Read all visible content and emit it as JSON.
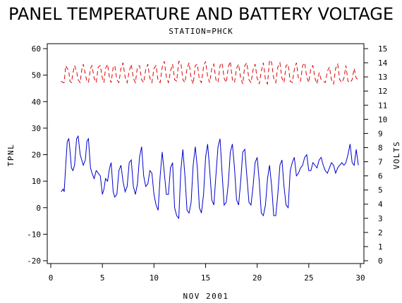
{
  "chart_data": {
    "type": "line",
    "title": "PANEL TEMPERATURE AND BATTERY VOLTAGE",
    "subtitle": "STATION=PHCK",
    "xlabel": "NOV 2001",
    "ylabel_left": "TPNL",
    "ylabel_right": "VOLTS",
    "xlim": [
      0,
      30
    ],
    "ylim_left": [
      -20,
      60
    ],
    "ylim_right": [
      0,
      15
    ],
    "x_ticks": [
      0,
      5,
      10,
      15,
      20,
      25,
      30
    ],
    "y_ticks_left": [
      -20,
      -10,
      0,
      10,
      20,
      30,
      40,
      50,
      60
    ],
    "y_ticks_right": [
      0,
      1,
      2,
      3,
      4,
      5,
      6,
      7,
      8,
      9,
      10,
      11,
      12,
      13,
      14,
      15
    ],
    "grid": false,
    "series": [
      {
        "axis": "left",
        "color": "#0000cc",
        "style": "solid",
        "x": [
          1.0,
          1.2,
          1.3,
          1.45,
          1.6,
          1.75,
          1.85,
          2.0,
          2.15,
          2.3,
          2.5,
          2.65,
          2.85,
          3.0,
          3.15,
          3.35,
          3.5,
          3.65,
          3.85,
          4.0,
          4.2,
          4.4,
          4.6,
          4.8,
          5.0,
          5.15,
          5.3,
          5.5,
          5.7,
          5.85,
          6.05,
          6.2,
          6.4,
          6.6,
          6.8,
          7.0,
          7.2,
          7.4,
          7.6,
          7.8,
          8.0,
          8.2,
          8.4,
          8.6,
          8.8,
          9.0,
          9.2,
          9.4,
          9.6,
          9.8,
          10.0,
          10.2,
          10.4,
          10.6,
          10.8,
          11.0,
          11.2,
          11.4,
          11.6,
          11.8,
          12.0,
          12.2,
          12.4,
          12.6,
          12.8,
          13.0,
          13.2,
          13.4,
          13.6,
          13.8,
          14.0,
          14.2,
          14.4,
          14.6,
          14.8,
          15.0,
          15.2,
          15.4,
          15.6,
          15.8,
          16.0,
          16.2,
          16.4,
          16.6,
          16.8,
          17.0,
          17.2,
          17.4,
          17.6,
          17.8,
          18.0,
          18.2,
          18.4,
          18.6,
          18.8,
          19.0,
          19.2,
          19.4,
          19.6,
          19.8,
          20.0,
          20.2,
          20.4,
          20.6,
          20.8,
          21.0,
          21.2,
          21.4,
          21.6,
          21.8,
          22.0,
          22.2,
          22.4,
          22.6,
          22.8,
          23.0,
          23.2,
          23.4,
          23.6,
          23.8,
          24.0,
          24.2,
          24.4,
          24.6,
          24.8,
          25.0,
          25.2,
          25.4,
          25.6,
          25.8,
          26.0,
          26.2,
          26.4,
          26.6,
          26.8,
          27.0,
          27.2,
          27.4,
          27.6,
          27.8,
          28.0,
          28.2,
          28.4,
          28.6,
          28.8,
          29.0,
          29.2,
          29.4,
          29.6,
          29.8
        ],
        "values": [
          6,
          7,
          6,
          16,
          25,
          26,
          22,
          15,
          14,
          16,
          26,
          27,
          20,
          18,
          16,
          18,
          25,
          26,
          15,
          13,
          11,
          14,
          13,
          12,
          5,
          7,
          11,
          10,
          15,
          17,
          6,
          4,
          5,
          14,
          16,
          10,
          6,
          8,
          17,
          18,
          8,
          5,
          9,
          19,
          23,
          12,
          8,
          9,
          14,
          13,
          5,
          1,
          -1,
          12,
          21,
          13,
          5,
          5,
          15,
          17,
          0,
          -3,
          -4,
          14,
          22,
          12,
          -1,
          -2,
          2,
          16,
          23,
          15,
          0,
          -2,
          5,
          19,
          24,
          14,
          3,
          1,
          12,
          23,
          26,
          13,
          1,
          2,
          9,
          21,
          24,
          15,
          3,
          1,
          10,
          21,
          22,
          12,
          2,
          1,
          8,
          17,
          19,
          10,
          -2,
          -3,
          1,
          11,
          16,
          8,
          -3,
          -3,
          5,
          16,
          18,
          8,
          1,
          0,
          14,
          17,
          19,
          12,
          13,
          15,
          16,
          19,
          20,
          14,
          14,
          17,
          16,
          15,
          18,
          19,
          16,
          14,
          13,
          15,
          17,
          16,
          13,
          15,
          16,
          17,
          16,
          17,
          20,
          24,
          17,
          16,
          22,
          16
        ]
      },
      {
        "axis": "right",
        "color": "#dd0000",
        "style": "dashed",
        "x": [
          1.0,
          1.2,
          1.3,
          1.45,
          1.6,
          1.75,
          1.85,
          2.0,
          2.15,
          2.3,
          2.5,
          2.65,
          2.85,
          3.0,
          3.15,
          3.35,
          3.5,
          3.65,
          3.85,
          4.0,
          4.2,
          4.4,
          4.6,
          4.8,
          5.0,
          5.15,
          5.3,
          5.5,
          5.7,
          5.85,
          6.05,
          6.2,
          6.4,
          6.6,
          6.8,
          7.0,
          7.2,
          7.4,
          7.6,
          7.8,
          8.0,
          8.2,
          8.4,
          8.6,
          8.8,
          9.0,
          9.2,
          9.4,
          9.6,
          9.8,
          10.0,
          10.2,
          10.4,
          10.6,
          10.8,
          11.0,
          11.2,
          11.4,
          11.6,
          11.8,
          12.0,
          12.2,
          12.4,
          12.6,
          12.8,
          13.0,
          13.2,
          13.4,
          13.6,
          13.8,
          14.0,
          14.2,
          14.4,
          14.6,
          14.8,
          15.0,
          15.2,
          15.4,
          15.6,
          15.8,
          16.0,
          16.2,
          16.4,
          16.6,
          16.8,
          17.0,
          17.2,
          17.4,
          17.6,
          17.8,
          18.0,
          18.2,
          18.4,
          18.6,
          18.8,
          19.0,
          19.2,
          19.4,
          19.6,
          19.8,
          20.0,
          20.2,
          20.4,
          20.6,
          20.8,
          21.0,
          21.2,
          21.4,
          21.6,
          21.8,
          22.0,
          22.2,
          22.4,
          22.6,
          22.8,
          23.0,
          23.2,
          23.4,
          23.6,
          23.8,
          24.0,
          24.2,
          24.4,
          24.6,
          24.8,
          25.0,
          25.2,
          25.4,
          25.6,
          25.8,
          26.0,
          26.2,
          26.4,
          26.6,
          26.8,
          27.0,
          27.2,
          27.4,
          27.6,
          27.8,
          28.0,
          28.2,
          28.4,
          28.6,
          28.8,
          29.0,
          29.2,
          29.4,
          29.6,
          29.8
        ],
        "values": [
          12.7,
          12.6,
          12.6,
          13.8,
          13.6,
          13.4,
          12.7,
          12.6,
          13.3,
          13.8,
          13.4,
          12.8,
          12.6,
          13.5,
          13.9,
          13.2,
          12.7,
          12.6,
          13.6,
          13.8,
          12.9,
          12.6,
          13.7,
          13.8,
          12.9,
          12.6,
          13.6,
          13.9,
          12.9,
          12.6,
          13.7,
          13.8,
          12.8,
          12.6,
          13.6,
          14.0,
          13.0,
          12.6,
          13.4,
          13.9,
          12.9,
          12.6,
          13.7,
          13.8,
          12.8,
          12.6,
          13.5,
          13.9,
          12.9,
          12.6,
          13.6,
          13.8,
          12.7,
          12.6,
          13.7,
          14.1,
          13.0,
          12.6,
          13.4,
          13.9,
          12.8,
          12.7,
          14.1,
          14.0,
          12.8,
          12.6,
          13.6,
          14.0,
          12.9,
          12.5,
          13.8,
          13.9,
          12.8,
          12.6,
          13.7,
          14.1,
          13.0,
          12.6,
          13.6,
          13.9,
          12.8,
          12.6,
          13.8,
          14.0,
          12.9,
          12.6,
          13.7,
          14.1,
          12.8,
          12.6,
          13.6,
          13.9,
          12.9,
          12.5,
          13.8,
          14.0,
          12.8,
          12.6,
          13.5,
          13.9,
          12.9,
          12.5,
          13.4,
          14.0,
          12.8,
          12.5,
          14.2,
          14.0,
          12.9,
          12.6,
          13.7,
          14.0,
          12.9,
          12.6,
          13.8,
          13.9,
          12.7,
          12.6,
          13.5,
          14.0,
          12.9,
          12.7,
          13.8,
          14.0,
          13.0,
          12.6,
          13.6,
          13.8,
          12.9,
          12.5,
          13.3,
          12.8,
          12.7,
          12.6,
          13.4,
          13.7,
          12.8,
          12.5,
          13.6,
          13.9,
          12.8,
          12.6,
          12.9,
          13.8,
          12.7,
          12.6,
          12.8,
          13.6,
          12.9,
          12.8
        ]
      }
    ]
  }
}
